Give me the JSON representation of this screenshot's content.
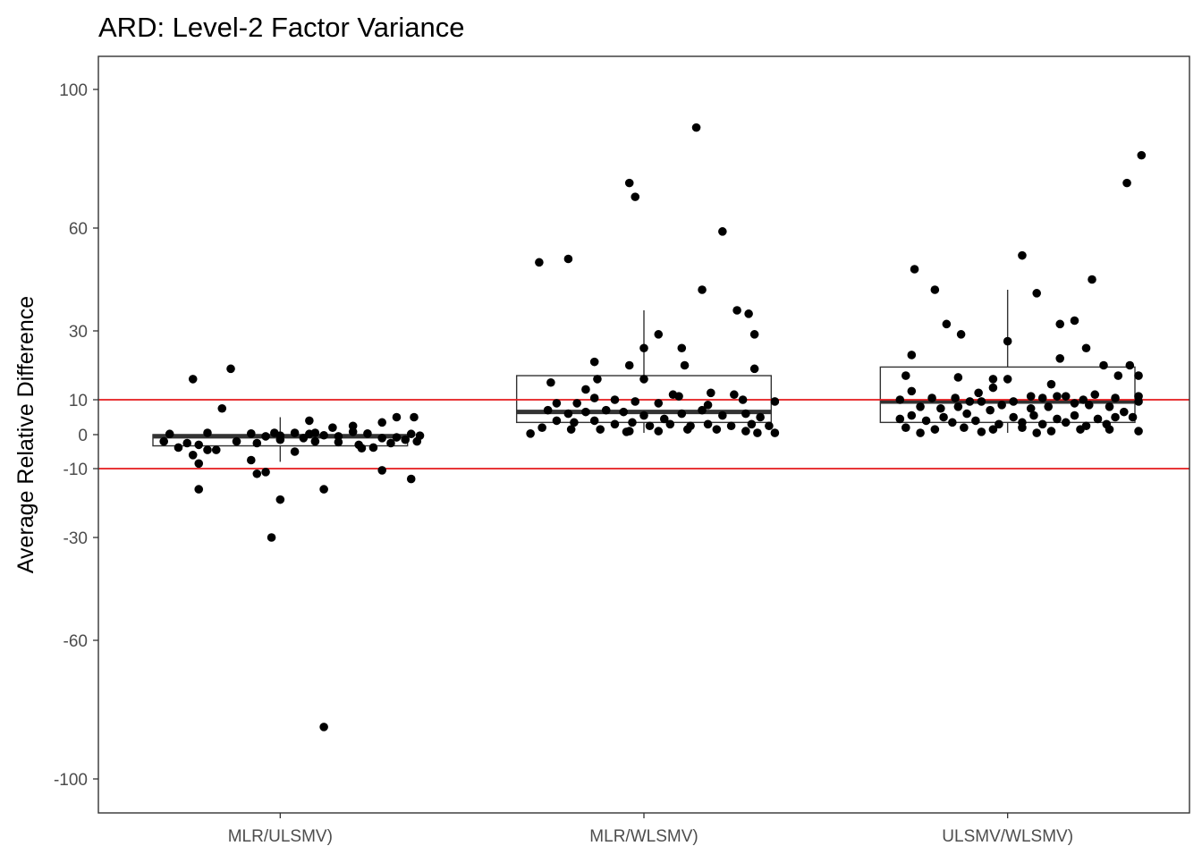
{
  "chart_data": {
    "type": "box",
    "title": "ARD: Level-2 Factor Variance",
    "xlabel": "",
    "ylabel": "Average Relative Difference",
    "categories": [
      "MLR/ULSMV)",
      "MLR/WLSMV)",
      "ULSMV/WLSMV)"
    ],
    "y_ticks": [
      -100,
      -60,
      -30,
      -10,
      0,
      10,
      30,
      60,
      100
    ],
    "y_tick_labels": [
      "-100",
      "-60",
      "-30",
      "-10",
      "0",
      "10",
      "30",
      "60",
      "100"
    ],
    "y_range": [
      -110,
      110
    ],
    "y_scale": "pseudo-log (compressed at large magnitudes)",
    "grid": false,
    "reference_lines": [
      10,
      -10
    ],
    "reference_line_color": "#e41a1c",
    "boxes": [
      {
        "category": "MLR/ULSMV)",
        "q1": -3.3,
        "median": -0.5,
        "q3": 0.0,
        "whisker_low": -8.0,
        "whisker_high": 5.0
      },
      {
        "category": "MLR/WLSMV)",
        "q1": 3.5,
        "median": 6.5,
        "q3": 17.0,
        "whisker_low": 0.5,
        "whisker_high": 36.0
      },
      {
        "category": "ULSMV/WLSMV)",
        "q1": 3.5,
        "median": 9.5,
        "q3": 19.5,
        "whisker_low": 0.5,
        "whisker_high": 42.0
      }
    ],
    "points": [
      [
        [
          0.2,
          16
        ],
        [
          0.33,
          19
        ],
        [
          0.3,
          7.5
        ],
        [
          0.25,
          0.5
        ],
        [
          0.4,
          0.3
        ],
        [
          0.48,
          0.5
        ],
        [
          0.12,
          0.2
        ],
        [
          0.45,
          -0.5
        ],
        [
          0.5,
          -0.3
        ],
        [
          0.55,
          0.5
        ],
        [
          0.6,
          0.2
        ],
        [
          0.65,
          -0.2
        ],
        [
          0.7,
          -0.5
        ],
        [
          0.75,
          0.8
        ],
        [
          0.8,
          0.3
        ],
        [
          0.85,
          -1.0
        ],
        [
          0.9,
          -0.8
        ],
        [
          0.95,
          0.2
        ],
        [
          0.98,
          -0.3
        ],
        [
          0.1,
          -2.0
        ],
        [
          0.18,
          -2.5
        ],
        [
          0.22,
          -3.0
        ],
        [
          0.28,
          -4.5
        ],
        [
          0.35,
          -2.0
        ],
        [
          0.42,
          -2.5
        ],
        [
          0.5,
          -1.5
        ],
        [
          0.58,
          -1.0
        ],
        [
          0.62,
          -2.0
        ],
        [
          0.7,
          -2.2
        ],
        [
          0.77,
          -3.0
        ],
        [
          0.82,
          -3.8
        ],
        [
          0.88,
          -2.5
        ],
        [
          0.93,
          -1.5
        ],
        [
          0.97,
          -2.0
        ],
        [
          0.15,
          -3.8
        ],
        [
          0.2,
          -6.0
        ],
        [
          0.25,
          -4.5
        ],
        [
          0.4,
          -7.5
        ],
        [
          0.55,
          -5.0
        ],
        [
          0.78,
          -4.0
        ],
        [
          0.6,
          4.0
        ],
        [
          0.75,
          2.5
        ],
        [
          0.85,
          3.5
        ],
        [
          0.9,
          5.0
        ],
        [
          0.96,
          5.0
        ],
        [
          0.68,
          2.0
        ],
        [
          0.62,
          0.5
        ],
        [
          0.22,
          -8.5
        ],
        [
          0.42,
          -11.5
        ],
        [
          0.45,
          -11.0
        ],
        [
          0.85,
          -10.5
        ],
        [
          0.22,
          -16
        ],
        [
          0.65,
          -16
        ],
        [
          0.95,
          -13
        ],
        [
          0.5,
          -19
        ],
        [
          0.47,
          -30
        ],
        [
          0.65,
          -85
        ]
      ],
      [
        [
          0.14,
          50
        ],
        [
          0.24,
          51
        ],
        [
          0.68,
          89
        ],
        [
          0.45,
          73
        ],
        [
          0.47,
          69
        ],
        [
          0.77,
          59
        ],
        [
          0.7,
          42
        ],
        [
          0.82,
          36
        ],
        [
          0.86,
          35
        ],
        [
          0.55,
          29
        ],
        [
          0.88,
          29
        ],
        [
          0.5,
          25
        ],
        [
          0.63,
          25
        ],
        [
          0.33,
          21
        ],
        [
          0.45,
          20
        ],
        [
          0.64,
          20
        ],
        [
          0.88,
          19
        ],
        [
          0.18,
          15
        ],
        [
          0.34,
          16
        ],
        [
          0.5,
          16
        ],
        [
          0.3,
          13
        ],
        [
          0.6,
          11.5
        ],
        [
          0.62,
          11
        ],
        [
          0.73,
          12
        ],
        [
          0.81,
          11.5
        ],
        [
          0.2,
          9
        ],
        [
          0.27,
          9
        ],
        [
          0.33,
          10.5
        ],
        [
          0.4,
          10
        ],
        [
          0.47,
          9.5
        ],
        [
          0.55,
          9
        ],
        [
          0.72,
          8.5
        ],
        [
          0.84,
          10
        ],
        [
          0.95,
          9.5
        ],
        [
          0.17,
          7
        ],
        [
          0.24,
          6
        ],
        [
          0.3,
          6.5
        ],
        [
          0.37,
          7
        ],
        [
          0.43,
          6.5
        ],
        [
          0.5,
          5.5
        ],
        [
          0.57,
          4.5
        ],
        [
          0.63,
          6
        ],
        [
          0.7,
          7
        ],
        [
          0.77,
          5.5
        ],
        [
          0.85,
          6
        ],
        [
          0.9,
          5
        ],
        [
          0.2,
          4
        ],
        [
          0.26,
          3.5
        ],
        [
          0.33,
          4
        ],
        [
          0.4,
          3
        ],
        [
          0.46,
          3.5
        ],
        [
          0.52,
          2.5
        ],
        [
          0.59,
          3
        ],
        [
          0.66,
          2.5
        ],
        [
          0.72,
          3
        ],
        [
          0.8,
          2.5
        ],
        [
          0.87,
          3
        ],
        [
          0.93,
          2.5
        ],
        [
          0.15,
          2
        ],
        [
          0.25,
          1.5
        ],
        [
          0.35,
          1.5
        ],
        [
          0.45,
          1
        ],
        [
          0.55,
          1
        ],
        [
          0.65,
          1.5
        ],
        [
          0.75,
          1.5
        ],
        [
          0.85,
          1
        ],
        [
          0.95,
          0.5
        ],
        [
          0.11,
          0.3
        ],
        [
          0.44,
          0.8
        ],
        [
          0.89,
          0.5
        ]
      ],
      [
        [
          0.18,
          48
        ],
        [
          0.25,
          42
        ],
        [
          0.55,
          52
        ],
        [
          0.6,
          41
        ],
        [
          0.79,
          45
        ],
        [
          0.91,
          73
        ],
        [
          0.96,
          81
        ],
        [
          0.29,
          32
        ],
        [
          0.34,
          29
        ],
        [
          0.5,
          27
        ],
        [
          0.68,
          32
        ],
        [
          0.73,
          33
        ],
        [
          0.77,
          25
        ],
        [
          0.17,
          23
        ],
        [
          0.68,
          22
        ],
        [
          0.83,
          20
        ],
        [
          0.92,
          20
        ],
        [
          0.15,
          17
        ],
        [
          0.33,
          16.5
        ],
        [
          0.45,
          16
        ],
        [
          0.5,
          16
        ],
        [
          0.65,
          14.5
        ],
        [
          0.88,
          17
        ],
        [
          0.95,
          17
        ],
        [
          0.17,
          12.5
        ],
        [
          0.4,
          12
        ],
        [
          0.45,
          13.5
        ],
        [
          0.58,
          11
        ],
        [
          0.7,
          11
        ],
        [
          0.8,
          11.5
        ],
        [
          0.95,
          11
        ],
        [
          0.13,
          10
        ],
        [
          0.24,
          10.5
        ],
        [
          0.32,
          10.5
        ],
        [
          0.37,
          9.5
        ],
        [
          0.52,
          9.5
        ],
        [
          0.62,
          10.5
        ],
        [
          0.67,
          11
        ],
        [
          0.76,
          10
        ],
        [
          0.87,
          10.5
        ],
        [
          0.95,
          9.5
        ],
        [
          0.2,
          8
        ],
        [
          0.27,
          7.5
        ],
        [
          0.33,
          8
        ],
        [
          0.41,
          9.5
        ],
        [
          0.48,
          8.5
        ],
        [
          0.58,
          7.5
        ],
        [
          0.64,
          8
        ],
        [
          0.73,
          9
        ],
        [
          0.78,
          8.5
        ],
        [
          0.85,
          8
        ],
        [
          0.9,
          6.5
        ],
        [
          0.17,
          5.5
        ],
        [
          0.28,
          5
        ],
        [
          0.36,
          6
        ],
        [
          0.44,
          7
        ],
        [
          0.52,
          5
        ],
        [
          0.59,
          5.5
        ],
        [
          0.67,
          4.5
        ],
        [
          0.73,
          5.5
        ],
        [
          0.81,
          4.5
        ],
        [
          0.87,
          5
        ],
        [
          0.93,
          5
        ],
        [
          0.13,
          4.5
        ],
        [
          0.22,
          4
        ],
        [
          0.31,
          3.5
        ],
        [
          0.39,
          4
        ],
        [
          0.47,
          3
        ],
        [
          0.55,
          3.5
        ],
        [
          0.62,
          3
        ],
        [
          0.7,
          3.5
        ],
        [
          0.77,
          2.5
        ],
        [
          0.84,
          3
        ],
        [
          0.15,
          2
        ],
        [
          0.25,
          1.5
        ],
        [
          0.35,
          2
        ],
        [
          0.45,
          1.5
        ],
        [
          0.55,
          2
        ],
        [
          0.65,
          1
        ],
        [
          0.75,
          1.5
        ],
        [
          0.85,
          1.5
        ],
        [
          0.95,
          1
        ],
        [
          0.2,
          0.5
        ],
        [
          0.41,
          0.8
        ],
        [
          0.6,
          0.5
        ]
      ]
    ]
  }
}
